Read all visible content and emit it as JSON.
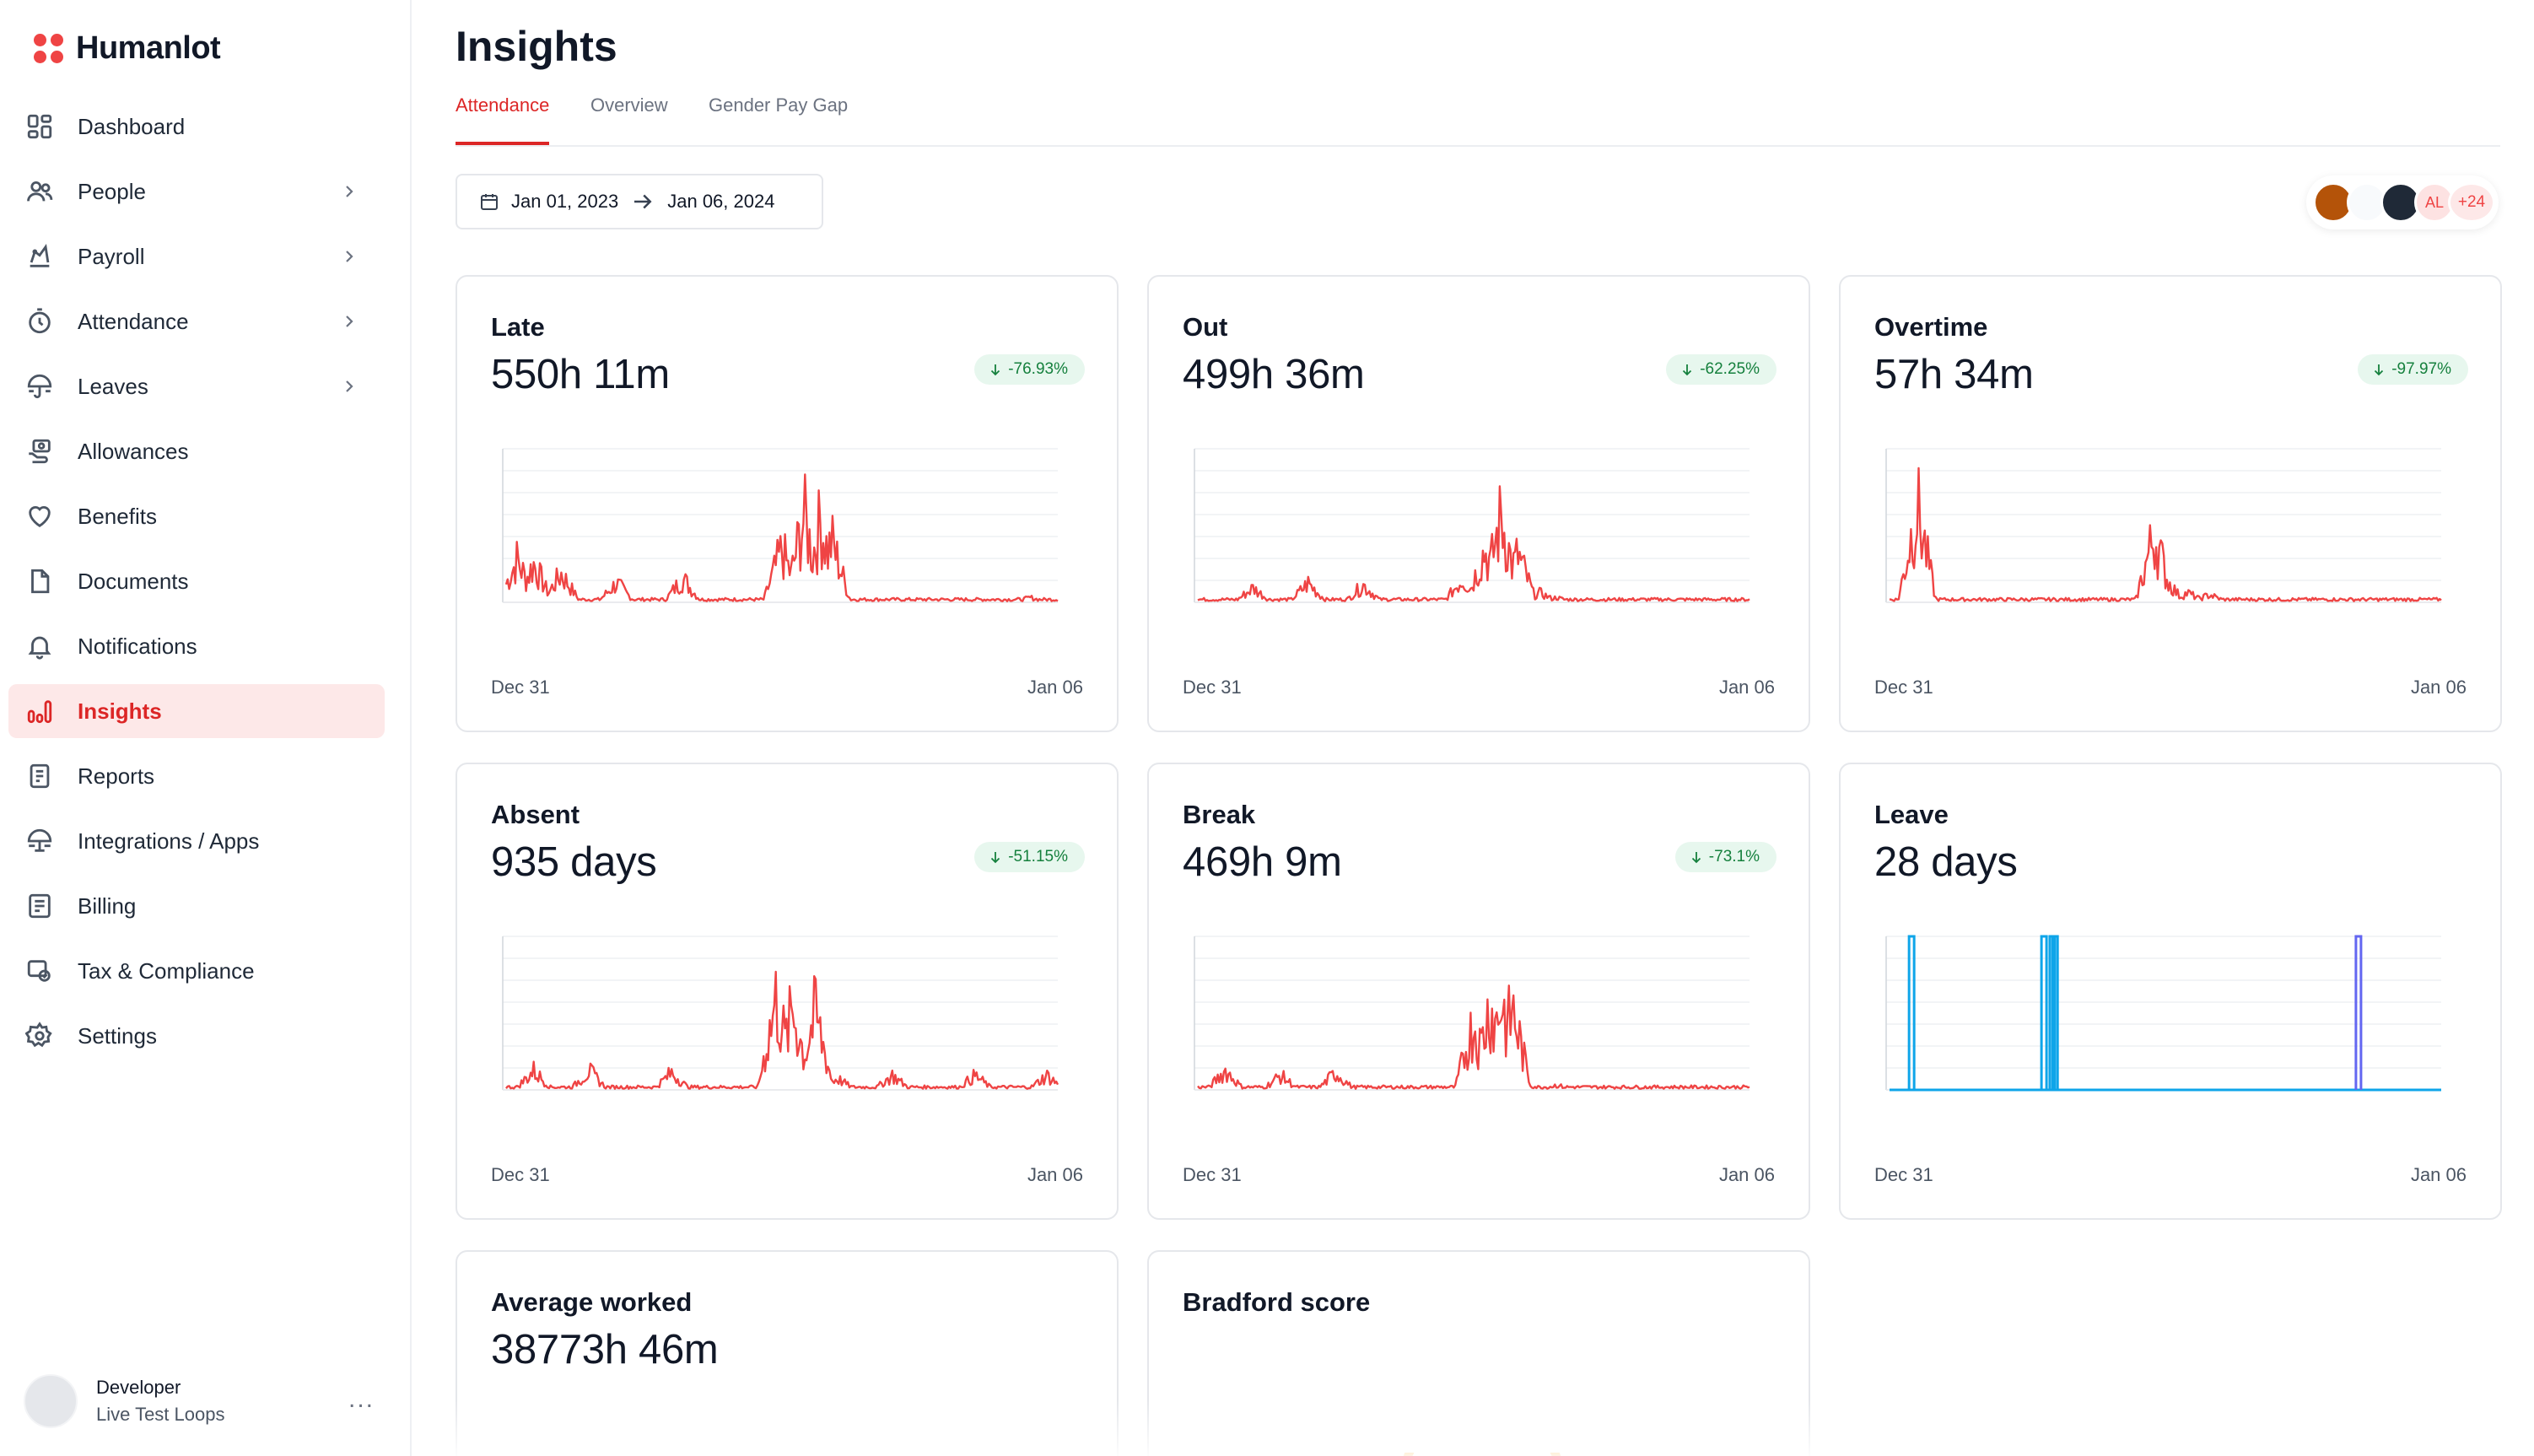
{
  "brand": {
    "name": "Humanlot",
    "accent": "#ef4444"
  },
  "sidebar": {
    "items": [
      {
        "label": "Dashboard",
        "icon": "dashboard-icon",
        "chevron": false
      },
      {
        "label": "People",
        "icon": "people-icon",
        "chevron": true
      },
      {
        "label": "Payroll",
        "icon": "payroll-icon",
        "chevron": true
      },
      {
        "label": "Attendance",
        "icon": "stopwatch-icon",
        "chevron": true
      },
      {
        "label": "Leaves",
        "icon": "umbrella-icon",
        "chevron": true
      },
      {
        "label": "Allowances",
        "icon": "hand-coins-icon",
        "chevron": false
      },
      {
        "label": "Benefits",
        "icon": "heart-icon",
        "chevron": false
      },
      {
        "label": "Documents",
        "icon": "document-icon",
        "chevron": false
      },
      {
        "label": "Notifications",
        "icon": "bell-icon",
        "chevron": false
      },
      {
        "label": "Insights",
        "icon": "bar-chart-icon",
        "chevron": false,
        "active": true
      },
      {
        "label": "Reports",
        "icon": "reports-icon",
        "chevron": false
      },
      {
        "label": "Integrations / Apps",
        "icon": "integrations-icon",
        "chevron": false
      },
      {
        "label": "Billing",
        "icon": "receipt-icon",
        "chevron": false
      },
      {
        "label": "Tax & Compliance",
        "icon": "tax-icon",
        "chevron": false
      },
      {
        "label": "Settings",
        "icon": "gear-icon",
        "chevron": false
      }
    ],
    "user": {
      "name": "Developer",
      "org": "Live Test Loops",
      "more": "..."
    }
  },
  "header": {
    "title": "Insights",
    "tabs": [
      "Attendance",
      "Overview",
      "Gender Pay Gap"
    ],
    "active_tab": "Attendance",
    "date_range": {
      "start": "Jan 01, 2023",
      "end": "Jan 06, 2024"
    },
    "avatars": {
      "initials": "AL",
      "more": "+24"
    }
  },
  "cards": [
    {
      "title": "Late",
      "value": "550h 11m",
      "badge": "-76.93%",
      "x_start": "Dec 31",
      "x_end": "Jan 06",
      "color": "#ef4444"
    },
    {
      "title": "Out",
      "value": "499h 36m",
      "badge": "-62.25%",
      "x_start": "Dec 31",
      "x_end": "Jan 06",
      "color": "#ef4444"
    },
    {
      "title": "Overtime",
      "value": "57h 34m",
      "badge": "-97.97%",
      "x_start": "Dec 31",
      "x_end": "Jan 06",
      "color": "#ef4444"
    },
    {
      "title": "Absent",
      "value": "935 days",
      "badge": "-51.15%",
      "x_start": "Dec 31",
      "x_end": "Jan 06",
      "color": "#ef4444"
    },
    {
      "title": "Break",
      "value": "469h 9m",
      "badge": "-73.1%",
      "x_start": "Dec 31",
      "x_end": "Jan 06",
      "color": "#ef4444"
    },
    {
      "title": "Leave",
      "value": "28 days",
      "badge": "",
      "x_start": "Dec 31",
      "x_end": "Jan 06",
      "color": "#0ea5e9"
    },
    {
      "title": "Average worked",
      "value": "38773h 46m",
      "badge": ""
    },
    {
      "title": "Bradford score",
      "value": "",
      "badge": ""
    }
  ],
  "chart_data": [
    {
      "type": "line",
      "x_range": [
        "Dec 31",
        "Jan 06"
      ],
      "series": [
        {
          "color": "#ef4444",
          "peaks": [
            [
              0.02,
              0.45
            ],
            [
              0.05,
              0.4
            ],
            [
              0.1,
              0.3
            ],
            [
              0.2,
              0.2
            ],
            [
              0.32,
              0.25
            ],
            [
              0.5,
              0.55
            ],
            [
              0.54,
              0.9
            ],
            [
              0.57,
              0.85
            ],
            [
              0.59,
              0.65
            ],
            [
              0.62,
              0.02
            ],
            [
              0.75,
              0.02
            ],
            [
              0.95,
              0.05
            ]
          ]
        }
      ]
    },
    {
      "type": "line",
      "x_range": [
        "Dec 31",
        "Jan 06"
      ],
      "series": [
        {
          "color": "#ef4444",
          "peaks": [
            [
              0.1,
              0.15
            ],
            [
              0.2,
              0.2
            ],
            [
              0.3,
              0.18
            ],
            [
              0.48,
              0.25
            ],
            [
              0.52,
              0.55
            ],
            [
              0.55,
              0.9
            ],
            [
              0.58,
              0.5
            ],
            [
              0.62,
              0.1
            ],
            [
              0.65,
              0.05
            ]
          ]
        }
      ]
    },
    {
      "type": "line",
      "x_range": [
        "Dec 31",
        "Jan 06"
      ],
      "series": [
        {
          "color": "#ef4444",
          "peaks": [
            [
              0.05,
              1.0
            ],
            [
              0.18,
              0.02
            ],
            [
              0.48,
              0.72
            ],
            [
              0.5,
              0.25
            ],
            [
              0.54,
              0.1
            ],
            [
              0.58,
              0.08
            ]
          ]
        }
      ]
    },
    {
      "type": "line",
      "x_range": [
        "Dec 31",
        "Jan 06"
      ],
      "series": [
        {
          "color": "#ef4444",
          "peaks": [
            [
              0.05,
              0.2
            ],
            [
              0.15,
              0.2
            ],
            [
              0.3,
              0.18
            ],
            [
              0.49,
              0.95
            ],
            [
              0.52,
              0.85
            ],
            [
              0.56,
              0.8
            ],
            [
              0.6,
              0.12
            ],
            [
              0.7,
              0.15
            ],
            [
              0.85,
              0.15
            ],
            [
              0.98,
              0.15
            ]
          ]
        }
      ]
    },
    {
      "type": "line",
      "x_range": [
        "Dec 31",
        "Jan 06"
      ],
      "series": [
        {
          "color": "#ef4444",
          "peaks": [
            [
              0.05,
              0.2
            ],
            [
              0.15,
              0.15
            ],
            [
              0.25,
              0.18
            ],
            [
              0.5,
              0.7
            ],
            [
              0.53,
              0.9
            ],
            [
              0.55,
              0.95
            ],
            [
              0.57,
              0.85
            ],
            [
              0.6,
              0.05
            ],
            [
              0.65,
              0.05
            ]
          ]
        }
      ]
    },
    {
      "type": "line",
      "x_range": [
        "Dec 31",
        "Jan 06"
      ],
      "series": [
        {
          "name": "",
          "color": "#0ea5e9",
          "spikes": [
            0.04,
            0.28,
            0.295,
            0.3
          ]
        },
        {
          "name": "",
          "color": "#6366f1",
          "spikes": [
            0.85
          ]
        }
      ]
    }
  ]
}
